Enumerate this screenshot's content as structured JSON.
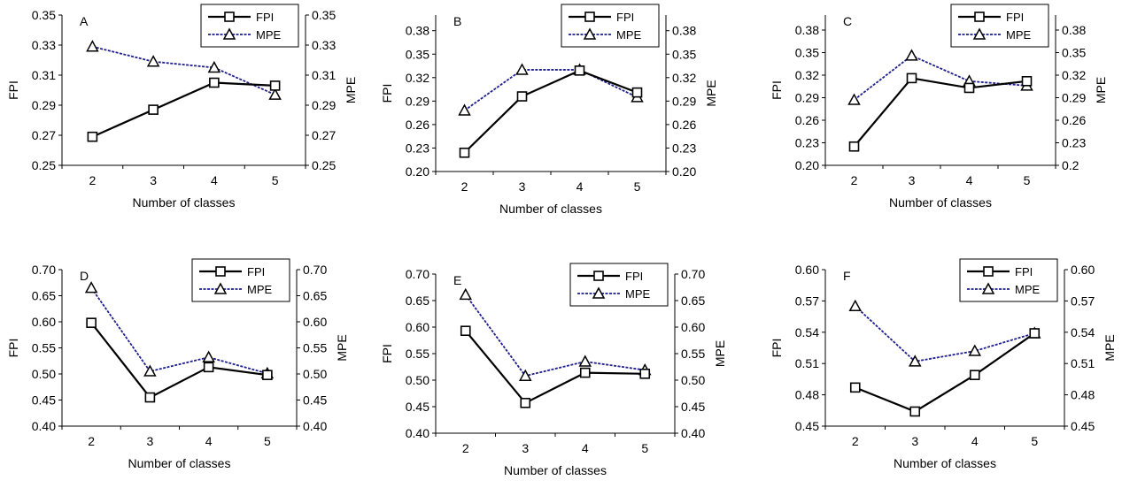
{
  "chart_data": [
    {
      "type": "line",
      "panel_label": "A",
      "categories": [
        "2",
        "3",
        "4",
        "5"
      ],
      "series": [
        {
          "name": "FPI",
          "values": [
            0.269,
            0.287,
            0.305,
            0.303
          ],
          "axis": "left",
          "color": "#000000",
          "marker": "square"
        },
        {
          "name": "MPE",
          "values": [
            0.329,
            0.319,
            0.315,
            0.297
          ],
          "axis": "right",
          "color": "#1f1f8f",
          "marker": "triangle"
        }
      ],
      "xlabel": "Number of classes",
      "ylabel_left": "FPI",
      "ylabel_right": "MPE",
      "ylim_left": [
        0.25,
        0.35
      ],
      "ylim_right": [
        0.25,
        0.35
      ],
      "yticks_left": [
        "0.25",
        "0.27",
        "0.29",
        "0.31",
        "0.33",
        "0.35"
      ],
      "yticks_right": [
        "0.25",
        "0.27",
        "0.29",
        "0.31",
        "0.33",
        "0.35"
      ],
      "grid": false,
      "legend": "top-right"
    },
    {
      "type": "line",
      "panel_label": "B",
      "categories": [
        "2",
        "3",
        "4",
        "5"
      ],
      "series": [
        {
          "name": "FPI",
          "values": [
            0.224,
            0.296,
            0.329,
            0.301
          ],
          "axis": "left",
          "color": "#000000",
          "marker": "square"
        },
        {
          "name": "MPE",
          "values": [
            0.278,
            0.33,
            0.33,
            0.295
          ],
          "axis": "right",
          "color": "#1f1f8f",
          "marker": "triangle"
        }
      ],
      "xlabel": "Number of classes",
      "ylabel_left": "FPI",
      "ylabel_right": "MPE",
      "ylim_left": [
        0.2,
        0.4
      ],
      "ylim_right": [
        0.2,
        0.4
      ],
      "yticks_left": [
        "0.20",
        "0.23",
        "0.26",
        "0.29",
        "0.32",
        "0.35",
        "0.38"
      ],
      "yticks_right": [
        "0.20",
        "0.23",
        "0.26",
        "0.29",
        "0.32",
        "0.35",
        "0.38"
      ],
      "grid": false,
      "legend": "top-right"
    },
    {
      "type": "line",
      "panel_label": "C",
      "categories": [
        "2",
        "3",
        "4",
        "5"
      ],
      "series": [
        {
          "name": "FPI",
          "values": [
            0.225,
            0.316,
            0.303,
            0.312
          ],
          "axis": "left",
          "color": "#000000",
          "marker": "square"
        },
        {
          "name": "MPE",
          "values": [
            0.287,
            0.346,
            0.312,
            0.306
          ],
          "axis": "right",
          "color": "#1f1f8f",
          "marker": "triangle"
        }
      ],
      "xlabel": "Number of classes",
      "ylabel_left": "FPI",
      "ylabel_right": "MPE",
      "ylim_left": [
        0.2,
        0.4
      ],
      "ylim_right": [
        0.2,
        0.4
      ],
      "yticks_left": [
        "0.20",
        "0.23",
        "0.26",
        "0.29",
        "0.32",
        "0.35",
        "0.38"
      ],
      "yticks_right": [
        "0.2",
        "0.23",
        "0.26",
        "0.29",
        "0.32",
        "0.35",
        "0.38"
      ],
      "grid": false,
      "legend": "top-right"
    },
    {
      "type": "line",
      "panel_label": "D",
      "categories": [
        "2",
        "3",
        "4",
        "5"
      ],
      "series": [
        {
          "name": "FPI",
          "values": [
            0.598,
            0.455,
            0.513,
            0.498
          ],
          "axis": "left",
          "color": "#000000",
          "marker": "square"
        },
        {
          "name": "MPE",
          "values": [
            0.665,
            0.505,
            0.532,
            0.501
          ],
          "axis": "right",
          "color": "#1f1f8f",
          "marker": "triangle"
        }
      ],
      "xlabel": "Number of classes",
      "ylabel_left": "FPI",
      "ylabel_right": "MPE",
      "ylim_left": [
        0.4,
        0.7
      ],
      "ylim_right": [
        0.4,
        0.7
      ],
      "yticks_left": [
        "0.40",
        "0.45",
        "0.50",
        "0.55",
        "0.60",
        "0.65",
        "0.70"
      ],
      "yticks_right": [
        "0.40",
        "0.45",
        "0.50",
        "0.55",
        "0.60",
        "0.65",
        "0.70"
      ],
      "grid": false,
      "legend": "top-right"
    },
    {
      "type": "line",
      "panel_label": "E",
      "categories": [
        "2",
        "3",
        "4",
        "5"
      ],
      "series": [
        {
          "name": "FPI",
          "values": [
            0.593,
            0.457,
            0.514,
            0.512
          ],
          "axis": "left",
          "color": "#000000",
          "marker": "square"
        },
        {
          "name": "MPE",
          "values": [
            0.661,
            0.508,
            0.535,
            0.519
          ],
          "axis": "right",
          "color": "#1f1f8f",
          "marker": "triangle"
        }
      ],
      "xlabel": "Number of classes",
      "ylabel_left": "FPI",
      "ylabel_right": "MPE",
      "ylim_left": [
        0.4,
        0.7
      ],
      "ylim_right": [
        0.4,
        0.7
      ],
      "yticks_left": [
        "0.40",
        "0.45",
        "0.50",
        "0.55",
        "0.60",
        "0.65",
        "0.70"
      ],
      "yticks_right": [
        "0.40",
        "0.45",
        "0.50",
        "0.55",
        "0.60",
        "0.65",
        "0.70"
      ],
      "grid": false,
      "legend": "top-right"
    },
    {
      "type": "line",
      "panel_label": "F",
      "categories": [
        "2",
        "3",
        "4",
        "5"
      ],
      "series": [
        {
          "name": "FPI",
          "values": [
            0.487,
            0.464,
            0.499,
            0.539
          ],
          "axis": "left",
          "color": "#000000",
          "marker": "square"
        },
        {
          "name": "MPE",
          "values": [
            0.565,
            0.512,
            0.522,
            0.539
          ],
          "axis": "right",
          "color": "#1f1f8f",
          "marker": "triangle"
        }
      ],
      "xlabel": "Number of classes",
      "ylabel_left": "FPI",
      "ylabel_right": "MPE",
      "ylim_left": [
        0.45,
        0.6
      ],
      "ylim_right": [
        0.45,
        0.6
      ],
      "yticks_left": [
        "0.45",
        "0.48",
        "0.51",
        "0.54",
        "0.57",
        "0.60"
      ],
      "yticks_right": [
        "0.45",
        "0.48",
        "0.51",
        "0.54",
        "0.57",
        "0.60"
      ],
      "grid": false,
      "legend": "top-right"
    }
  ]
}
